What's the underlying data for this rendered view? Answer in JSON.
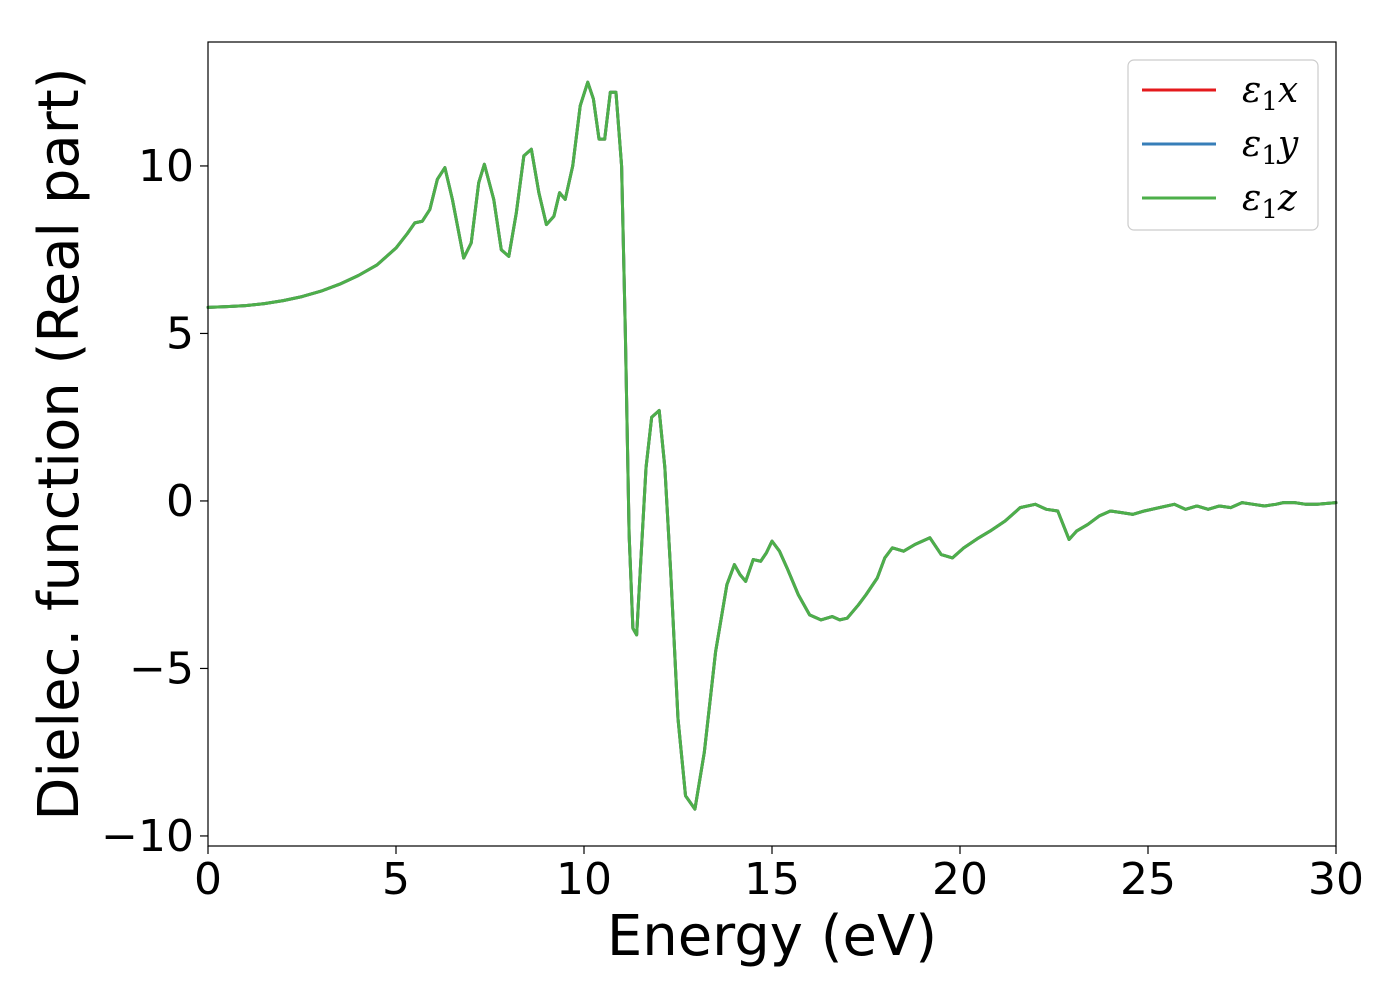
{
  "chart_data": {
    "type": "line",
    "title": "",
    "xlabel": "Energy (eV)",
    "ylabel": "Dielec. function (Real part)",
    "xlim": [
      0,
      30
    ],
    "ylim": [
      -10.3,
      13.7
    ],
    "xticks": [
      0,
      5,
      10,
      15,
      20,
      25,
      30
    ],
    "xtick_labels": [
      "0",
      "5",
      "10",
      "15",
      "20",
      "25",
      "30"
    ],
    "yticks": [
      -10,
      -5,
      0,
      5,
      10
    ],
    "ytick_labels": [
      "−10",
      "−5",
      "0",
      "5",
      "10"
    ],
    "grid": false,
    "legend_position": "top-right",
    "x": [
      0,
      0.5,
      1,
      1.5,
      2,
      2.5,
      3,
      3.5,
      4,
      4.5,
      5,
      5.3,
      5.5,
      5.7,
      5.9,
      6.1,
      6.3,
      6.5,
      6.8,
      7.0,
      7.2,
      7.35,
      7.6,
      7.8,
      8.0,
      8.2,
      8.4,
      8.6,
      8.8,
      9.0,
      9.2,
      9.35,
      9.5,
      9.7,
      9.9,
      10.1,
      10.25,
      10.4,
      10.55,
      10.7,
      10.85,
      11.0,
      11.1,
      11.2,
      11.3,
      11.4,
      11.5,
      11.65,
      11.8,
      12.0,
      12.15,
      12.3,
      12.5,
      12.7,
      12.95,
      13.2,
      13.5,
      13.8,
      14.0,
      14.15,
      14.3,
      14.5,
      14.7,
      14.85,
      15.0,
      15.2,
      15.4,
      15.7,
      16.0,
      16.3,
      16.6,
      16.8,
      17.0,
      17.3,
      17.5,
      17.8,
      18.0,
      18.2,
      18.5,
      18.8,
      19.2,
      19.5,
      19.8,
      20.1,
      20.5,
      20.8,
      21.2,
      21.6,
      22.0,
      22.3,
      22.6,
      22.9,
      23.1,
      23.4,
      23.7,
      24.0,
      24.3,
      24.6,
      24.9,
      25.3,
      25.7,
      26.0,
      26.3,
      26.6,
      26.9,
      27.2,
      27.5,
      27.8,
      28.1,
      28.4,
      28.6,
      28.9,
      29.2,
      29.5,
      30.0
    ],
    "series": [
      {
        "name": "ε₁x",
        "color": "#e41a1c",
        "y": [
          5.78,
          5.8,
          5.83,
          5.89,
          5.98,
          6.1,
          6.26,
          6.47,
          6.73,
          7.05,
          7.55,
          7.98,
          8.3,
          8.35,
          8.7,
          9.6,
          9.95,
          9.0,
          7.25,
          7.7,
          9.5,
          10.05,
          9.0,
          7.5,
          7.3,
          8.6,
          10.3,
          10.5,
          9.2,
          8.25,
          8.5,
          9.2,
          9.0,
          10.0,
          11.8,
          12.5,
          12.0,
          10.8,
          10.8,
          12.2,
          12.2,
          10.0,
          5.0,
          -1.0,
          -3.8,
          -4.0,
          -2.0,
          1.0,
          2.5,
          2.7,
          1.0,
          -2.0,
          -6.5,
          -8.8,
          -9.2,
          -7.5,
          -4.5,
          -2.5,
          -1.9,
          -2.2,
          -2.4,
          -1.75,
          -1.8,
          -1.55,
          -1.2,
          -1.5,
          -2.0,
          -2.8,
          -3.4,
          -3.55,
          -3.45,
          -3.55,
          -3.5,
          -3.1,
          -2.8,
          -2.3,
          -1.7,
          -1.4,
          -1.5,
          -1.3,
          -1.1,
          -1.6,
          -1.7,
          -1.4,
          -1.1,
          -0.9,
          -0.6,
          -0.2,
          -0.1,
          -0.25,
          -0.3,
          -1.15,
          -0.9,
          -0.7,
          -0.45,
          -0.3,
          -0.35,
          -0.4,
          -0.3,
          -0.2,
          -0.1,
          -0.25,
          -0.15,
          -0.25,
          -0.15,
          -0.2,
          -0.05,
          -0.1,
          -0.15,
          -0.1,
          -0.05,
          -0.05,
          -0.1,
          -0.1,
          -0.05
        ]
      },
      {
        "name": "ε₁y",
        "color": "#377eb8",
        "y": [
          5.78,
          5.8,
          5.83,
          5.89,
          5.98,
          6.1,
          6.26,
          6.47,
          6.73,
          7.05,
          7.55,
          7.98,
          8.3,
          8.35,
          8.7,
          9.6,
          9.95,
          9.0,
          7.25,
          7.7,
          9.5,
          10.05,
          9.0,
          7.5,
          7.3,
          8.6,
          10.3,
          10.5,
          9.2,
          8.25,
          8.5,
          9.2,
          9.0,
          10.0,
          11.8,
          12.5,
          12.0,
          10.8,
          10.8,
          12.2,
          12.2,
          10.0,
          5.0,
          -1.0,
          -3.8,
          -4.0,
          -2.0,
          1.0,
          2.5,
          2.7,
          1.0,
          -2.0,
          -6.5,
          -8.8,
          -9.2,
          -7.5,
          -4.5,
          -2.5,
          -1.9,
          -2.2,
          -2.4,
          -1.75,
          -1.8,
          -1.55,
          -1.2,
          -1.5,
          -2.0,
          -2.8,
          -3.4,
          -3.55,
          -3.45,
          -3.55,
          -3.5,
          -3.1,
          -2.8,
          -2.3,
          -1.7,
          -1.4,
          -1.5,
          -1.3,
          -1.1,
          -1.6,
          -1.7,
          -1.4,
          -1.1,
          -0.9,
          -0.6,
          -0.2,
          -0.1,
          -0.25,
          -0.3,
          -1.15,
          -0.9,
          -0.7,
          -0.45,
          -0.3,
          -0.35,
          -0.4,
          -0.3,
          -0.2,
          -0.1,
          -0.25,
          -0.15,
          -0.25,
          -0.15,
          -0.2,
          -0.05,
          -0.1,
          -0.15,
          -0.1,
          -0.05,
          -0.05,
          -0.1,
          -0.1,
          -0.05
        ]
      },
      {
        "name": "ε₁z",
        "color": "#4daf4a",
        "y": [
          5.78,
          5.8,
          5.83,
          5.89,
          5.98,
          6.1,
          6.26,
          6.47,
          6.73,
          7.05,
          7.55,
          7.98,
          8.3,
          8.35,
          8.7,
          9.6,
          9.95,
          9.0,
          7.25,
          7.7,
          9.5,
          10.05,
          9.0,
          7.5,
          7.3,
          8.6,
          10.3,
          10.5,
          9.2,
          8.25,
          8.5,
          9.2,
          9.0,
          10.0,
          11.8,
          12.5,
          12.0,
          10.8,
          10.8,
          12.2,
          12.2,
          10.0,
          5.0,
          -1.0,
          -3.8,
          -4.0,
          -2.0,
          1.0,
          2.5,
          2.7,
          1.0,
          -2.0,
          -6.5,
          -8.8,
          -9.2,
          -7.5,
          -4.5,
          -2.5,
          -1.9,
          -2.2,
          -2.4,
          -1.75,
          -1.8,
          -1.55,
          -1.2,
          -1.5,
          -2.0,
          -2.8,
          -3.4,
          -3.55,
          -3.45,
          -3.55,
          -3.5,
          -3.1,
          -2.8,
          -2.3,
          -1.7,
          -1.4,
          -1.5,
          -1.3,
          -1.1,
          -1.6,
          -1.7,
          -1.4,
          -1.1,
          -0.9,
          -0.6,
          -0.2,
          -0.1,
          -0.25,
          -0.3,
          -1.15,
          -0.9,
          -0.7,
          -0.45,
          -0.3,
          -0.35,
          -0.4,
          -0.3,
          -0.2,
          -0.1,
          -0.25,
          -0.15,
          -0.25,
          -0.15,
          -0.2,
          -0.05,
          -0.1,
          -0.15,
          -0.1,
          -0.05,
          -0.05,
          -0.1,
          -0.1,
          -0.05
        ]
      }
    ],
    "legend": {
      "entries": [
        {
          "label_symbol": "ε",
          "label_sub": "1",
          "label_axis": "x",
          "color": "#e41a1c"
        },
        {
          "label_symbol": "ε",
          "label_sub": "1",
          "label_axis": "y",
          "color": "#377eb8"
        },
        {
          "label_symbol": "ε",
          "label_sub": "1",
          "label_axis": "z",
          "color": "#4daf4a"
        }
      ]
    }
  }
}
